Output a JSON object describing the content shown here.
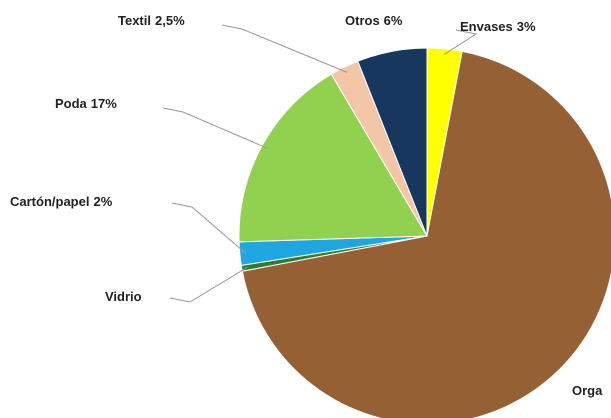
{
  "chart_data": {
    "type": "pie",
    "categories": [
      "Envases",
      "Orga",
      "Vidrio",
      "Cartón/papel",
      "Poda",
      "Textil",
      "Otros"
    ],
    "values": [
      3,
      69,
      0.5,
      2,
      17,
      2.5,
      6
    ],
    "value_labels": [
      "3%",
      null,
      null,
      "2%",
      "17%",
      "2,5%",
      "6%"
    ],
    "colors": [
      "#ffff00",
      "#956134",
      "#2e7d32",
      "#1fa6e0",
      "#92d050",
      "#f4c6a8",
      "#17375e"
    ]
  }
}
